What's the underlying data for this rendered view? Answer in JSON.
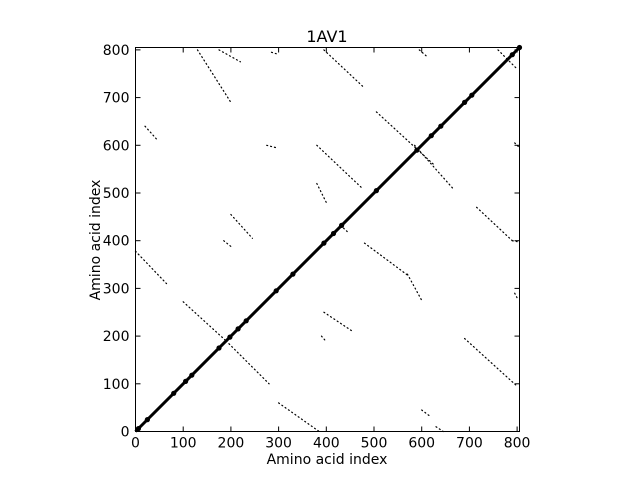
{
  "chart_data": {
    "type": "scatter",
    "title": "1AV1",
    "xlabel": "Amino acid index",
    "ylabel": "Amino acid index",
    "xlim": [
      0,
      805
    ],
    "ylim": [
      0,
      805
    ],
    "xticks": [
      0,
      100,
      200,
      300,
      400,
      500,
      600,
      700,
      800
    ],
    "yticks": [
      0,
      100,
      200,
      300,
      400,
      500,
      600,
      700,
      800
    ],
    "grid": false,
    "legend": "none",
    "marker_color": "#000000",
    "diagonal": {
      "x": [
        0,
        805
      ],
      "y": [
        0,
        805
      ]
    },
    "diagonal_blobs": [
      [
        6,
        6
      ],
      [
        25,
        25
      ],
      [
        80,
        80
      ],
      [
        105,
        105
      ],
      [
        118,
        118
      ],
      [
        175,
        175
      ],
      [
        198,
        198
      ],
      [
        215,
        215
      ],
      [
        232,
        232
      ],
      [
        295,
        295
      ],
      [
        330,
        330
      ],
      [
        395,
        395
      ],
      [
        415,
        415
      ],
      [
        432,
        432
      ],
      [
        505,
        505
      ],
      [
        590,
        590
      ],
      [
        620,
        620
      ],
      [
        640,
        640
      ],
      [
        690,
        690
      ],
      [
        705,
        705
      ],
      [
        790,
        790
      ],
      [
        805,
        805
      ]
    ],
    "off_diagonal_segments": [
      {
        "x": [
          100,
          190
        ],
        "y": [
          272,
          190
        ]
      },
      {
        "x": [
          190,
          280
        ],
        "y": [
          190,
          100
        ]
      },
      {
        "x": [
          0,
          65
        ],
        "y": [
          378,
          310
        ]
      },
      {
        "x": [
          300,
          385
        ],
        "y": [
          60,
          0
        ]
      },
      {
        "x": [
          395,
          480
        ],
        "y": [
          800,
          720
        ]
      },
      {
        "x": [
          480,
          570
        ],
        "y": [
          395,
          328
        ]
      },
      {
        "x": [
          380,
          475
        ],
        "y": [
          600,
          510
        ]
      },
      {
        "x": [
          380,
          400
        ],
        "y": [
          520,
          480
        ]
      },
      {
        "x": [
          200,
          245
        ],
        "y": [
          455,
          405
        ]
      },
      {
        "x": [
          185,
          200
        ],
        "y": [
          400,
          388
        ]
      },
      {
        "x": [
          395,
          455
        ],
        "y": [
          250,
          210
        ]
      },
      {
        "x": [
          390,
          400
        ],
        "y": [
          200,
          188
        ]
      },
      {
        "x": [
          600,
          620
        ],
        "y": [
          45,
          30
        ]
      },
      {
        "x": [
          760,
          800
        ],
        "y": [
          800,
          760
        ]
      },
      {
        "x": [
          690,
          800
        ],
        "y": [
          195,
          95
        ]
      },
      {
        "x": [
          715,
          790
        ],
        "y": [
          470,
          400
        ]
      },
      {
        "x": [
          790,
          800
        ],
        "y": [
          400,
          398
        ]
      },
      {
        "x": [
          505,
          625
        ],
        "y": [
          670,
          560
        ]
      },
      {
        "x": [
          585,
          665
        ],
        "y": [
          600,
          510
        ]
      },
      {
        "x": [
          430,
          445
        ],
        "y": [
          432,
          418
        ]
      },
      {
        "x": [
          570,
          600
        ],
        "y": [
          330,
          275
        ]
      },
      {
        "x": [
          130,
          200
        ],
        "y": [
          800,
          690
        ]
      },
      {
        "x": [
          175,
          220
        ],
        "y": [
          800,
          775
        ]
      },
      {
        "x": [
          20,
          45
        ],
        "y": [
          640,
          612
        ]
      },
      {
        "x": [
          275,
          295
        ],
        "y": [
          600,
          595
        ]
      },
      {
        "x": [
          285,
          295
        ],
        "y": [
          795,
          792
        ]
      },
      {
        "x": [
          595,
          610
        ],
        "y": [
          800,
          787
        ]
      },
      {
        "x": [
          795,
          805
        ],
        "y": [
          605,
          595
        ]
      },
      {
        "x": [
          795,
          800
        ],
        "y": [
          290,
          280
        ]
      },
      {
        "x": [
          630,
          645
        ],
        "y": [
          10,
          0
        ]
      }
    ]
  }
}
